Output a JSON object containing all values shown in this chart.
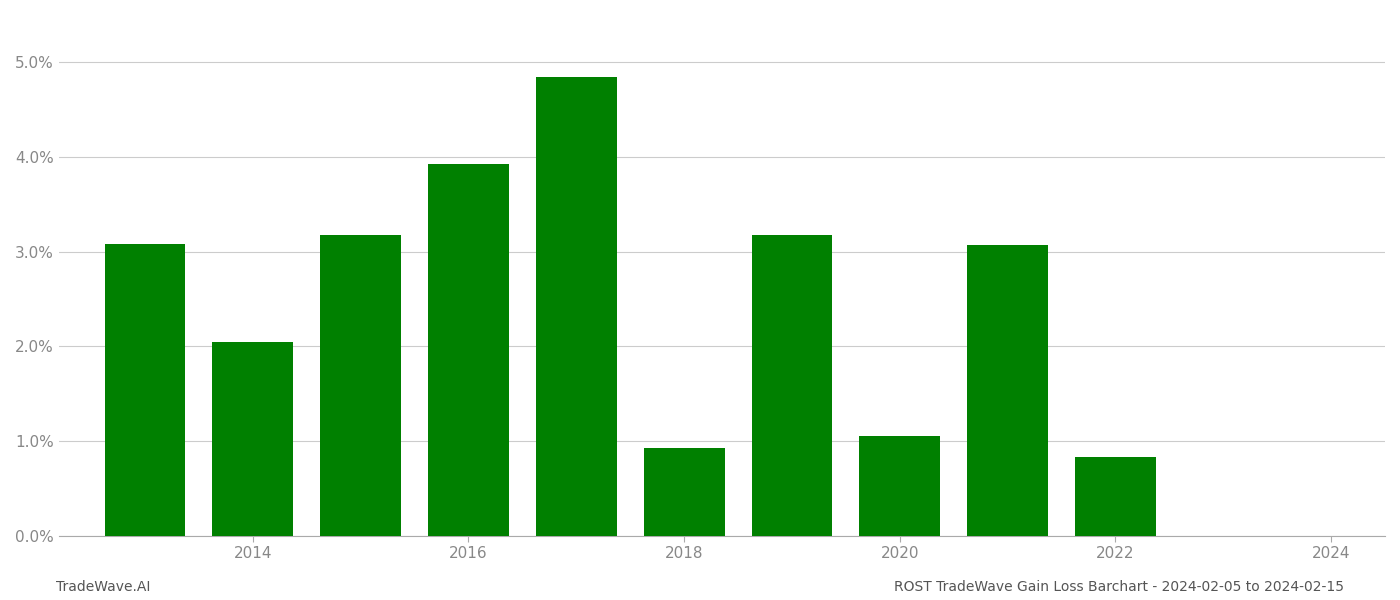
{
  "years": [
    2013,
    2014,
    2015,
    2016,
    2017,
    2018,
    2019,
    2020,
    2021,
    2022
  ],
  "values": [
    0.0308,
    0.0205,
    0.0318,
    0.0393,
    0.0485,
    0.0093,
    0.0318,
    0.0105,
    0.0307,
    0.0083
  ],
  "bar_color": "#008000",
  "background_color": "#ffffff",
  "grid_color": "#cccccc",
  "ylabel_color": "#888888",
  "xlabel_color": "#888888",
  "ylim": [
    0.0,
    0.055
  ],
  "yticks": [
    0.0,
    0.01,
    0.02,
    0.03,
    0.04,
    0.05
  ],
  "xtick_labels": [
    "2014",
    "2016",
    "2018",
    "2020",
    "2022",
    "2024"
  ],
  "xtick_positions": [
    2014,
    2016,
    2018,
    2020,
    2022,
    2024
  ],
  "xlim_left": 2012.2,
  "xlim_right": 2024.5,
  "footer_left": "TradeWave.AI",
  "footer_right": "ROST TradeWave Gain Loss Barchart - 2024-02-05 to 2024-02-15",
  "bar_width": 0.75,
  "figsize": [
    14.0,
    6.0
  ],
  "dpi": 100
}
